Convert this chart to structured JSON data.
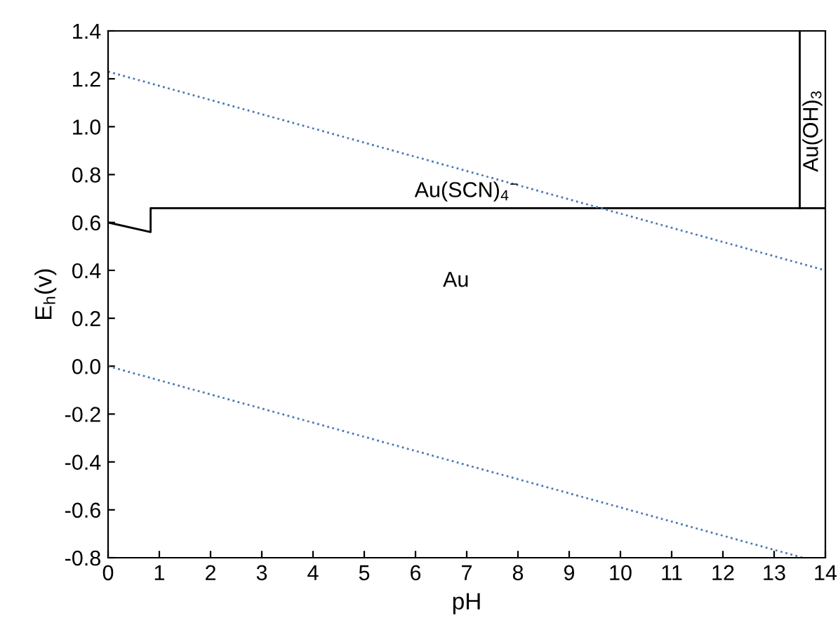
{
  "chart_data": {
    "type": "line",
    "xlabel": "pH",
    "ylabel": "E$_{h}$(v)",
    "xlim": [
      0,
      14
    ],
    "ylim": [
      -0.8,
      1.4
    ],
    "xticks": [
      0,
      1,
      2,
      3,
      4,
      5,
      6,
      7,
      8,
      9,
      10,
      11,
      12,
      13,
      14
    ],
    "yticks": [
      -0.8,
      -0.6,
      -0.4,
      -0.2,
      {
        "value": 0,
        "label": "0.0"
      },
      0.2,
      0.4,
      0.6,
      0.8,
      {
        "value": 1,
        "label": "1.0"
      },
      1.2,
      1.4
    ],
    "series": [
      {
        "color": "#000000",
        "line_style": "solid",
        "x": [
          0,
          0.83,
          0.83,
          14
        ],
        "values": [
          0.6,
          0.56,
          0.66,
          0.66
        ]
      },
      {
        "color": "#000000",
        "line_style": "solid",
        "x": [
          13.5,
          13.5
        ],
        "values": [
          0.66,
          1.4
        ]
      },
      {
        "color": "#4a7ab5",
        "line_style": "dotted",
        "x": [
          0,
          14
        ],
        "values": [
          1.23,
          0.4
        ]
      },
      {
        "color": "#4a7ab5",
        "line_style": "dotted",
        "x": [
          0,
          13.56
        ],
        "values": [
          0,
          -0.8
        ]
      }
    ],
    "annotations": [
      "Au(SCN)$_{4}$$^{−}$",
      "Au",
      "Au(OH)$_{3}$"
    ],
    "grid": false,
    "legend": false,
    "marker": "none"
  }
}
